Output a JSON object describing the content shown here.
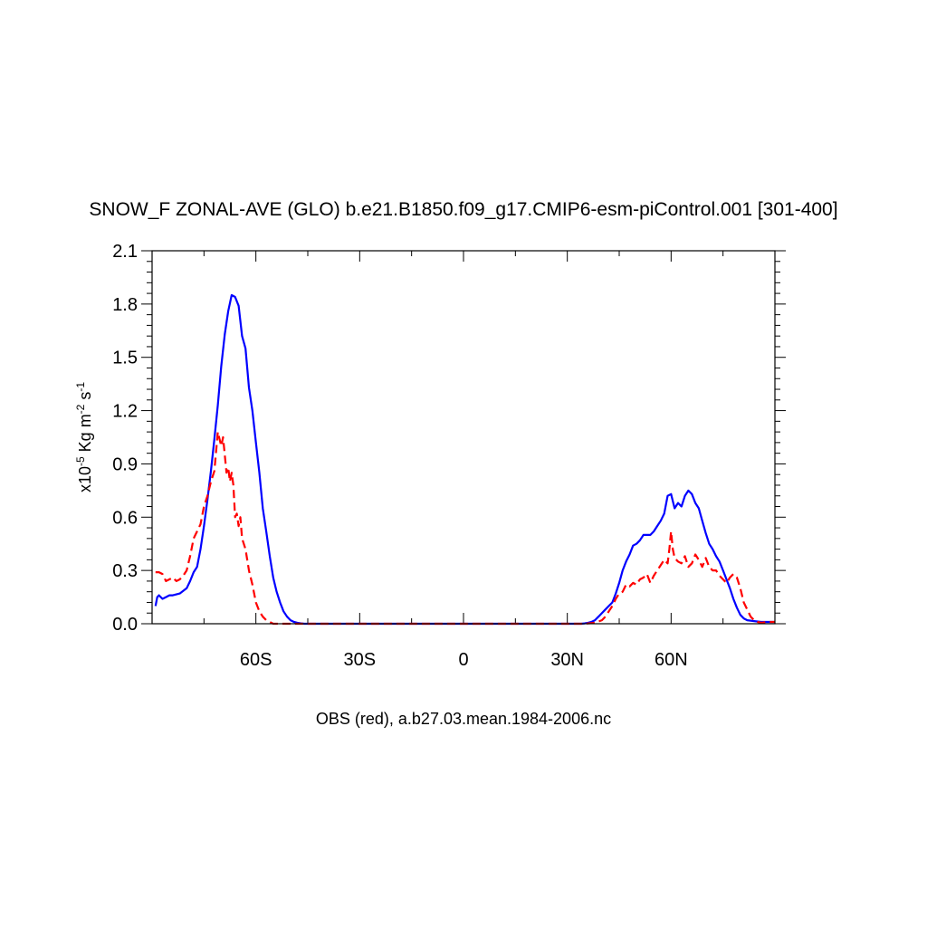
{
  "chart_data": {
    "type": "line",
    "title": "SNOW_F ZONAL-AVE (GLO) b.e21.B1850.f09_g17.CMIP6-esm-piControl.001 [301-400]",
    "subtitle": "OBS (red), a.b27.03.mean.1984-2006.nc",
    "ylabel": {
      "prefix": "x10",
      "exp": "-5",
      "mid": " Kg m",
      "exp2": "-2",
      "mid2": " s",
      "exp3": "-1"
    },
    "xlim": [
      -90,
      90
    ],
    "ylim": [
      0,
      2.1
    ],
    "x_ticks": [
      {
        "value": -60,
        "label": "60S"
      },
      {
        "value": -30,
        "label": "30S"
      },
      {
        "value": 0,
        "label": "0"
      },
      {
        "value": 30,
        "label": "30N"
      },
      {
        "value": 60,
        "label": "60N"
      }
    ],
    "y_ticks": [
      {
        "value": 0.0,
        "label": "0.0"
      },
      {
        "value": 0.3,
        "label": "0.3"
      },
      {
        "value": 0.6,
        "label": "0.6"
      },
      {
        "value": 0.9,
        "label": "0.9"
      },
      {
        "value": 1.2,
        "label": "1.2"
      },
      {
        "value": 1.5,
        "label": "1.5"
      },
      {
        "value": 1.8,
        "label": "1.8"
      },
      {
        "value": 2.1,
        "label": "2.1"
      }
    ],
    "series": [
      {
        "color": "#0000ff",
        "dash": "solid",
        "x": [
          -89,
          -88.5,
          -88,
          -87,
          -86,
          -85,
          -84,
          -82,
          -80,
          -79,
          -78,
          -77,
          -76,
          -75,
          -74,
          -73,
          -72,
          -71,
          -70,
          -69,
          -68,
          -67,
          -66,
          -65,
          -64,
          -63,
          -62,
          -61,
          -60,
          -59,
          -58,
          -57,
          -56,
          -55,
          -54,
          -53,
          -52,
          -51,
          -50,
          -49,
          -48,
          -47,
          -46,
          -45,
          -44,
          -43,
          -42,
          -40,
          -35,
          -30,
          -20,
          -10,
          0,
          10,
          20,
          30,
          34,
          35,
          36,
          37,
          38,
          39,
          40,
          41,
          42,
          43,
          44,
          45,
          46,
          47,
          48,
          49,
          50,
          51,
          52,
          53,
          54,
          55,
          56,
          57,
          58,
          59,
          60,
          61,
          62,
          63,
          64,
          65,
          66,
          67,
          68,
          69,
          70,
          71,
          72,
          73,
          74,
          75,
          76,
          77,
          78,
          79,
          80,
          81,
          82,
          84,
          86,
          88,
          90
        ],
        "y": [
          0.1,
          0.15,
          0.16,
          0.14,
          0.15,
          0.16,
          0.16,
          0.17,
          0.2,
          0.24,
          0.29,
          0.32,
          0.42,
          0.55,
          0.7,
          0.86,
          1.04,
          1.23,
          1.45,
          1.63,
          1.76,
          1.85,
          1.84,
          1.79,
          1.62,
          1.55,
          1.33,
          1.2,
          1.02,
          0.85,
          0.65,
          0.52,
          0.38,
          0.26,
          0.18,
          0.12,
          0.07,
          0.04,
          0.02,
          0.01,
          0.005,
          0.002,
          0,
          0,
          0,
          0,
          0,
          0,
          0,
          0,
          0,
          0,
          0,
          0,
          0,
          0,
          0,
          0.002,
          0.005,
          0.01,
          0.02,
          0.04,
          0.06,
          0.08,
          0.1,
          0.12,
          0.17,
          0.23,
          0.3,
          0.35,
          0.39,
          0.44,
          0.45,
          0.47,
          0.5,
          0.5,
          0.5,
          0.52,
          0.55,
          0.58,
          0.62,
          0.72,
          0.73,
          0.65,
          0.68,
          0.66,
          0.72,
          0.75,
          0.73,
          0.68,
          0.65,
          0.58,
          0.51,
          0.45,
          0.42,
          0.38,
          0.35,
          0.3,
          0.25,
          0.2,
          0.14,
          0.09,
          0.05,
          0.03,
          0.02,
          0.015,
          0.01,
          0.01,
          0.01
        ]
      },
      {
        "color": "#ff0000",
        "dash": "dashed",
        "x": [
          -89,
          -88,
          -87,
          -86,
          -85,
          -84,
          -83,
          -82,
          -81,
          -80,
          -79,
          -78,
          -77,
          -76,
          -75,
          -74,
          -73,
          -72,
          -71,
          -70,
          -69.5,
          -69,
          -68.5,
          -68,
          -67.5,
          -67,
          -66.5,
          -66,
          -65.5,
          -65,
          -64.5,
          -64,
          -63,
          -62,
          -61,
          -60,
          -59,
          -58,
          -57,
          -56,
          -55,
          -54,
          -53,
          -52,
          -51,
          -50,
          -49,
          -48,
          -47,
          -46,
          -45,
          -40,
          -30,
          -20,
          -10,
          0,
          10,
          20,
          30,
          35,
          38,
          40,
          41,
          42,
          43,
          44,
          45,
          46,
          47,
          48,
          49,
          50,
          51,
          52,
          53,
          54,
          55,
          56,
          57,
          58,
          59,
          59.5,
          60,
          60.5,
          61,
          62,
          63,
          64,
          65,
          66,
          67,
          68,
          69,
          70,
          71,
          72,
          73,
          74,
          75,
          76,
          77,
          78,
          79,
          80,
          81,
          82,
          83,
          84,
          85,
          86,
          88,
          90
        ],
        "y": [
          0.29,
          0.29,
          0.28,
          0.24,
          0.25,
          0.26,
          0.24,
          0.25,
          0.27,
          0.3,
          0.38,
          0.48,
          0.52,
          0.56,
          0.66,
          0.72,
          0.8,
          0.86,
          1.08,
          1.0,
          1.05,
          0.95,
          0.85,
          0.88,
          0.8,
          0.85,
          0.78,
          0.6,
          0.62,
          0.55,
          0.6,
          0.48,
          0.42,
          0.3,
          0.22,
          0.12,
          0.07,
          0.04,
          0.02,
          0.01,
          0,
          0,
          0,
          0,
          0,
          0,
          0,
          0,
          0,
          0,
          0,
          0,
          0,
          0,
          0,
          0,
          0,
          0,
          0,
          0,
          0.005,
          0.02,
          0.04,
          0.07,
          0.1,
          0.14,
          0.17,
          0.18,
          0.22,
          0.21,
          0.23,
          0.22,
          0.25,
          0.26,
          0.28,
          0.23,
          0.27,
          0.3,
          0.33,
          0.36,
          0.34,
          0.42,
          0.52,
          0.42,
          0.37,
          0.35,
          0.34,
          0.38,
          0.32,
          0.34,
          0.39,
          0.36,
          0.32,
          0.37,
          0.32,
          0.3,
          0.3,
          0.27,
          0.25,
          0.23,
          0.26,
          0.28,
          0.26,
          0.2,
          0.12,
          0.08,
          0.04,
          0.02,
          0.01,
          0.005,
          0.01,
          0.01
        ]
      }
    ]
  }
}
